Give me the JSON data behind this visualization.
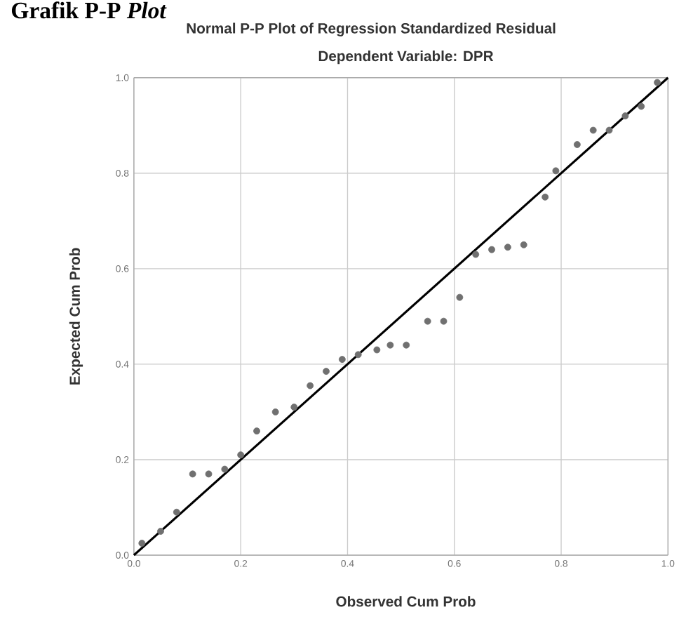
{
  "chart_data": {
    "type": "scatter",
    "title": "Normal P-P Plot of Regression Standardized Residual",
    "subtitle": "Dependent Variable: DPR",
    "xlabel": "Observed Cum Prob",
    "ylabel": "Expected Cum Prob",
    "annotations": [
      "Grafik P-P *Plot*"
    ],
    "xlim": [
      0,
      1
    ],
    "ylim": [
      0,
      1
    ],
    "xticks": [
      {
        "value": 0,
        "label": "0.0"
      },
      {
        "value": 0.2,
        "label": "0.2"
      },
      {
        "value": 0.4,
        "label": "0.4"
      },
      {
        "value": 0.6,
        "label": "0.6"
      },
      {
        "value": 0.8,
        "label": "0.8"
      },
      {
        "value": 1,
        "label": "1.0"
      }
    ],
    "yticks": [
      {
        "value": 0,
        "label": "0.0"
      },
      {
        "value": 0.2,
        "label": "0.2"
      },
      {
        "value": 0.4,
        "label": "0.4"
      },
      {
        "value": 0.6,
        "label": "0.6"
      },
      {
        "value": 0.8,
        "label": "0.8"
      },
      {
        "value": 1,
        "label": "1.0"
      }
    ],
    "grid": true,
    "marker": "circle",
    "series": [
      {
        "color": "#707070",
        "x": [
          0.015,
          0.05,
          0.08,
          0.11,
          0.14,
          0.17,
          0.2,
          0.23,
          0.265,
          0.3,
          0.33,
          0.36,
          0.39,
          0.42,
          0.455,
          0.48,
          0.51,
          0.55,
          0.58,
          0.61,
          0.64,
          0.67,
          0.7,
          0.73,
          0.77,
          0.79,
          0.83,
          0.86,
          0.89,
          0.92,
          0.95,
          0.98
        ],
        "values": [
          0.025,
          0.05,
          0.09,
          0.17,
          0.17,
          0.18,
          0.21,
          0.26,
          0.3,
          0.31,
          0.355,
          0.385,
          0.41,
          0.42,
          0.43,
          0.44,
          0.44,
          0.49,
          0.49,
          0.54,
          0.63,
          0.64,
          0.645,
          0.65,
          0.75,
          0.805,
          0.86,
          0.89,
          0.89,
          0.92,
          0.94,
          0.99
        ]
      },
      {
        "type": "line",
        "marker": "none",
        "color": "#000000",
        "x": [
          0,
          1
        ],
        "values": [
          0,
          1
        ]
      }
    ]
  }
}
